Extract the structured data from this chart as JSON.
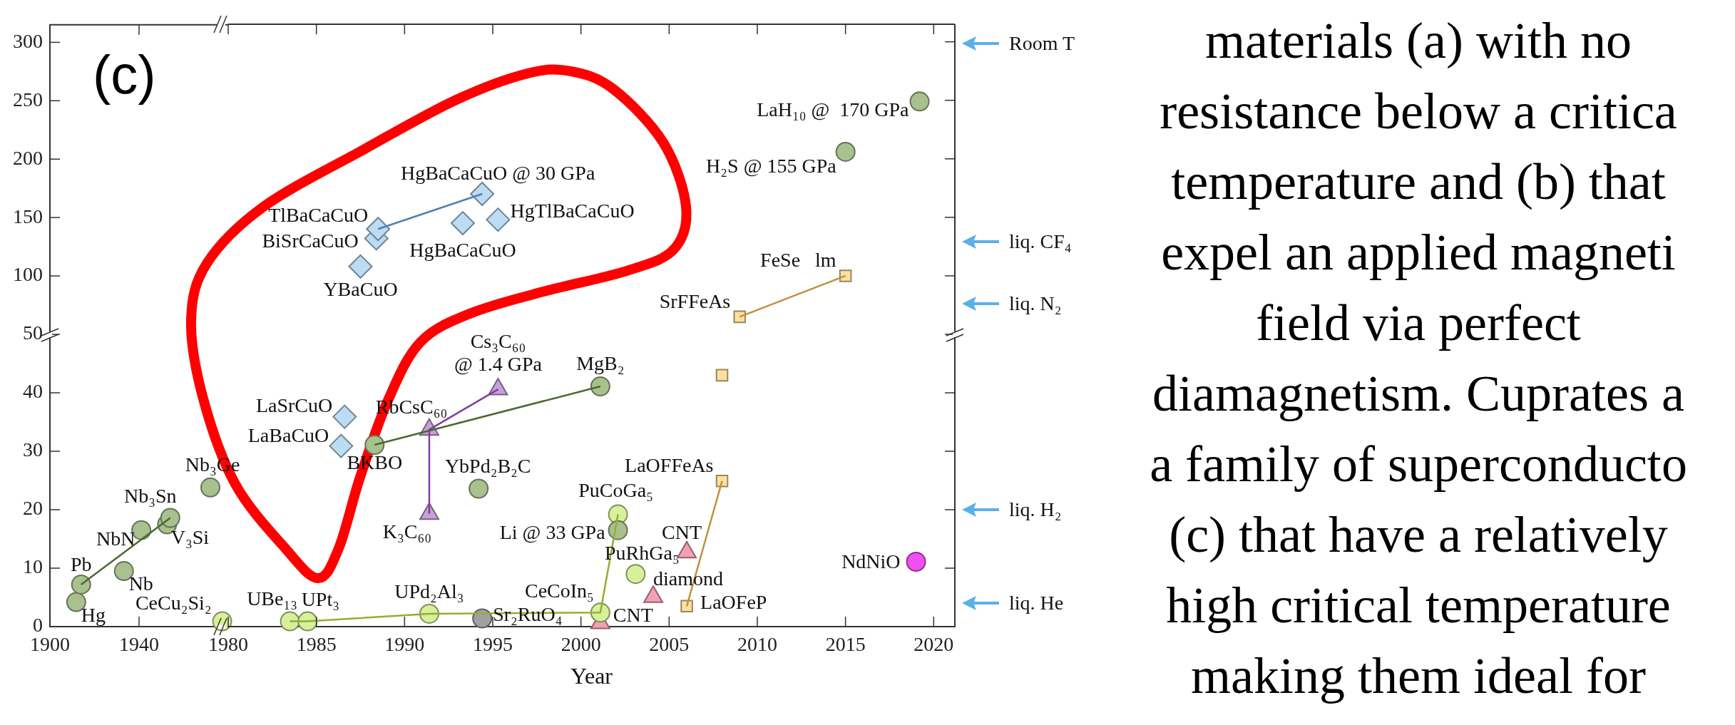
{
  "chart_data": [
    {
      "type": "scatter",
      "xlim": [
        1900,
        1980
      ],
      "xticks": [
        1900,
        1940
      ],
      "ylim": [
        50,
        315
      ],
      "yticks": [
        100,
        150,
        200,
        250,
        300
      ],
      "tick_labels": "y",
      "annotations": [
        "(c)"
      ]
    },
    {
      "type": "scatter",
      "xlim": [
        1980,
        2021.2
      ],
      "xticks": [
        1980,
        1985,
        1990,
        1995,
        2000,
        2005,
        2010,
        2015,
        2020
      ],
      "ylim": [
        50,
        315
      ],
      "yticks": [
        100,
        150,
        200,
        250,
        300
      ],
      "tick_labels": false,
      "series": [
        {
          "marker": "diamond",
          "color": "#bcdcf4",
          "x": [
            1987.5,
            1988.4,
            1988.5,
            1993.3,
            1994.4,
            1995.3
          ],
          "values": [
            108,
            132,
            140,
            145,
            170,
            148
          ]
        },
        {
          "marker": "circle",
          "color": "#a9c08f",
          "x": [
            2015,
            2019.2
          ],
          "values": [
            206,
            249
          ]
        },
        {
          "marker": "square",
          "color": "#fde0a0",
          "x": [
            2009.0,
            2015.0
          ],
          "values": [
            65,
            100
          ]
        },
        {
          "type": "line",
          "marker": "none",
          "color": "#5080b0",
          "x": [
            1988.5,
            1994.4
          ],
          "values": [
            140,
            170
          ]
        },
        {
          "type": "line",
          "marker": "none",
          "color": "#c09040",
          "x": [
            2009.0,
            2015.0
          ],
          "values": [
            65,
            100
          ]
        }
      ],
      "annotations": [
        "materials (a) with no\nresistance below a critica\ntemperature and (b) that\nexpel an applied magneti\nfield via perfect\ndiamagnetism. Cuprates a\na family of superconducto\n(c) that have a relatively\nhigh critical temperature\nmaking them ideal for",
        "Room T",
        "liq. CF₄",
        "liq. N₂",
        {
          "text": "YBaCuO",
          "x": 1987.5,
          "y": 108
        },
        {
          "text": "BiSrCaCuO",
          "x": 1988.4,
          "y": 132
        },
        {
          "text": "TlBaCaCuO",
          "x": 1988.5,
          "y": 140
        },
        {
          "text": "HgBaCaCuO",
          "x": 1993.3,
          "y": 145
        },
        {
          "text": "HgBaCaCuO @ 30 GPa",
          "x": 1994.4,
          "y": 170
        },
        {
          "text": "HgTlBaCaCuO",
          "x": 1995.3,
          "y": 148
        },
        {
          "text": "H₂S @ 155 GPa",
          "x": 2015,
          "y": 206
        },
        {
          "text": "LaH₁₀ @  170 GPa",
          "x": 2019.2,
          "y": 249
        },
        {
          "text": "SrFFeAs",
          "x": 2009.0,
          "y": 65
        },
        {
          "text": "FeSe   lm",
          "x": 2015.0,
          "y": 100
        }
      ]
    },
    {
      "type": "scatter",
      "xlim": [
        1900,
        1980
      ],
      "xticks": [
        1900,
        1940
      ],
      "ylim": [
        0,
        50
      ],
      "yticks": [
        0,
        10,
        20,
        30,
        40,
        50
      ],
      "series": [
        {
          "marker": "circle",
          "color": "#a9c08f",
          "x": [
            1911.8,
            1914,
            1933.2,
            1941,
            1952.6,
            1954,
            1972
          ],
          "values": [
            4.2,
            7.2,
            9.5,
            16.5,
            17.5,
            18.6,
            23.8
          ]
        },
        {
          "marker": "circle",
          "color": "#d8f09a",
          "x": [
            1977.3
          ],
          "values": [
            0.9
          ]
        },
        {
          "type": "line",
          "marker": "none",
          "color": "#4a6a30",
          "x": [
            1914,
            1954
          ],
          "values": [
            7.2,
            18.6
          ]
        }
      ],
      "annotations": [
        {
          "text": "Hg",
          "x": 1911.8,
          "y": 4.2
        },
        {
          "text": "Pb",
          "x": 1914,
          "y": 7.2
        },
        {
          "text": "Nb",
          "x": 1933.2,
          "y": 9.5
        },
        {
          "text": "NbN",
          "x": 1941,
          "y": 16.5
        },
        {
          "text": "V₃Si",
          "x": 1952.6,
          "y": 17.5
        },
        {
          "text": "Nb₃Sn",
          "x": 1954,
          "y": 18.6
        },
        {
          "text": "Nb₃Ge",
          "x": 1972,
          "y": 23.8
        },
        {
          "text": "CeCu₂Si₂",
          "x": 1977.3,
          "y": 0.9
        }
      ]
    },
    {
      "type": "scatter",
      "xlabel": "Year",
      "xlim": [
        1980,
        2021.2
      ],
      "xticks": [
        1980,
        1985,
        1990,
        1995,
        2000,
        2005,
        2010,
        2015,
        2020
      ],
      "ylim": [
        0,
        50
      ],
      "yticks": [
        0,
        10,
        20,
        30,
        40,
        50
      ],
      "tick_labels": "x",
      "series": [
        {
          "marker": "circle",
          "color": "#a9c08f",
          "x": [
            1988.3,
            1994.2,
            2001.1,
            2002.1
          ],
          "values": [
            31.1,
            23.6,
            41.1,
            16.5
          ]
        },
        {
          "marker": "diamond",
          "color": "#bcdcf4",
          "x": [
            1986.4,
            1986.6
          ],
          "values": [
            30.9,
            35.9
          ]
        },
        {
          "marker": "circle",
          "color": "#d8f09a",
          "x": [
            1983.5,
            1984.5,
            1991.4,
            2001.1,
            2002.1,
            2003.1
          ],
          "values": [
            0.9,
            0.9,
            2.2,
            2.4,
            19.2,
            9.0
          ]
        },
        {
          "marker": "circle",
          "color": "#a0a0a0",
          "x": [
            1994.4
          ],
          "values": [
            1.4
          ]
        },
        {
          "marker": "triangle",
          "color": "#c8a0d8",
          "x": [
            1991.4,
            1991.4,
            1995.3
          ],
          "values": [
            19.3,
            33.7,
            40.6
          ]
        },
        {
          "marker": "triangle",
          "color": "#f4a0b4",
          "x": [
            2001.1,
            2004.1,
            2006.0
          ],
          "values": [
            0.6,
            5.1,
            12.7
          ]
        },
        {
          "marker": "square",
          "color": "#fde0a0",
          "x": [
            2006.0,
            2008.0,
            2008.0
          ],
          "values": [
            3.5,
            24.9,
            43.0
          ]
        },
        {
          "marker": "circle",
          "color": "#f050f0",
          "x": [
            2019.0
          ],
          "values": [
            11.1
          ]
        },
        {
          "type": "line",
          "marker": "none",
          "color": "#4a6a30",
          "x": [
            1988.3,
            2001.1
          ],
          "values": [
            31.1,
            41.1
          ]
        },
        {
          "type": "line",
          "marker": "none",
          "color": "#90b030",
          "x": [
            1983.5,
            1984.5,
            1991.4,
            2001.1,
            2002.1
          ],
          "values": [
            0.9,
            0.9,
            2.2,
            2.4,
            19.2
          ]
        },
        {
          "type": "line",
          "marker": "none",
          "color": "#8040a0",
          "x": [
            1991.4,
            1991.4,
            1995.3
          ],
          "values": [
            19.3,
            33.7,
            40.6
          ]
        },
        {
          "type": "line",
          "marker": "none",
          "color": "#c09040",
          "x": [
            2006.0,
            2008.0
          ],
          "values": [
            3.5,
            24.9
          ]
        }
      ],
      "annotations": [
        "liq. H₂",
        "liq. He",
        {
          "text": "BKBO",
          "x": 1988.3,
          "y": 31.1
        },
        {
          "text": "YbPd₂B₂C",
          "x": 1994.2,
          "y": 23.6
        },
        {
          "text": "MgB₂",
          "x": 2001.1,
          "y": 41.1
        },
        {
          "text": "Li @ 33 GPa",
          "x": 2002.1,
          "y": 16.5
        },
        {
          "text": "LaBaCuO",
          "x": 1986.4,
          "y": 30.9
        },
        {
          "text": "LaSrCuO",
          "x": 1986.6,
          "y": 35.9
        },
        {
          "text": "UBe₁₃",
          "x": 1983.5,
          "y": 0.9
        },
        {
          "text": "UPt₃",
          "x": 1984.5,
          "y": 0.9
        },
        {
          "text": "UPd₂Al₃",
          "x": 1991.4,
          "y": 2.2
        },
        {
          "text": "Sr₂RuO₄",
          "x": 1994.4,
          "y": 1.4
        },
        {
          "text": "CeCoIn₅",
          "x": 2001.1,
          "y": 2.4
        },
        {
          "text": "PuCoGa₅",
          "x": 2002.1,
          "y": 19.2
        },
        {
          "text": "PuRhGa₅",
          "x": 2003.1,
          "y": 9.0
        },
        {
          "text": "CNT",
          "x": 2001.1,
          "y": 0.6
        },
        {
          "text": "diamond",
          "x": 2004.1,
          "y": 5.1
        },
        {
          "text": "CNT",
          "x": 2006.0,
          "y": 12.7
        },
        {
          "text": "K₃C₆₀",
          "x": 1991.4,
          "y": 19.3
        },
        {
          "text": "RbCsC₆₀",
          "x": 1991.4,
          "y": 33.7
        },
        {
          "text": "Cs₃C₆₀\n@ 1.4 GPa",
          "x": 1995.3,
          "y": 40.6
        },
        {
          "text": "LaOFeP",
          "x": 2006.0,
          "y": 3.5
        },
        {
          "text": "LaOFFeAs",
          "x": 2008.0,
          "y": 24.9
        },
        {
          "text": "NdNiO",
          "x": 2019.0,
          "y": 11.1
        }
      ]
    }
  ]
}
